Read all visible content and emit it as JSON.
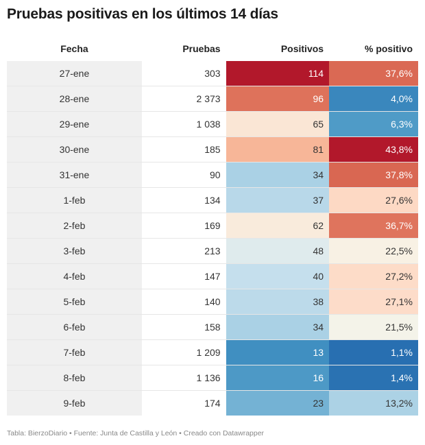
{
  "title": "Pruebas positivas en los últimos 14 días",
  "footer": "Tabla: BierzoDiario • Fuente: Junta de Castilla y León • Creado con Datawrapper",
  "chart_data": {
    "type": "table",
    "columns": [
      "Fecha",
      "Pruebas",
      "Positivos",
      "% positivo"
    ],
    "rows": [
      {
        "fecha": "27-ene",
        "pruebas": "303",
        "positivos": "114",
        "pct": "37,6%",
        "pos_value": 114,
        "pct_value": 37.6
      },
      {
        "fecha": "28-ene",
        "pruebas": "2 373",
        "positivos": "96",
        "pct": "4,0%",
        "pos_value": 96,
        "pct_value": 4.0
      },
      {
        "fecha": "29-ene",
        "pruebas": "1 038",
        "positivos": "65",
        "pct": "6,3%",
        "pos_value": 65,
        "pct_value": 6.3
      },
      {
        "fecha": "30-ene",
        "pruebas": "185",
        "positivos": "81",
        "pct": "43,8%",
        "pos_value": 81,
        "pct_value": 43.8
      },
      {
        "fecha": "31-ene",
        "pruebas": "90",
        "positivos": "34",
        "pct": "37,8%",
        "pos_value": 34,
        "pct_value": 37.8
      },
      {
        "fecha": "1-feb",
        "pruebas": "134",
        "positivos": "37",
        "pct": "27,6%",
        "pos_value": 37,
        "pct_value": 27.6
      },
      {
        "fecha": "2-feb",
        "pruebas": "169",
        "positivos": "62",
        "pct": "36,7%",
        "pos_value": 62,
        "pct_value": 36.7
      },
      {
        "fecha": "3-feb",
        "pruebas": "213",
        "positivos": "48",
        "pct": "22,5%",
        "pos_value": 48,
        "pct_value": 22.5
      },
      {
        "fecha": "4-feb",
        "pruebas": "147",
        "positivos": "40",
        "pct": "27,2%",
        "pos_value": 40,
        "pct_value": 27.2
      },
      {
        "fecha": "5-feb",
        "pruebas": "140",
        "positivos": "38",
        "pct": "27,1%",
        "pos_value": 38,
        "pct_value": 27.1
      },
      {
        "fecha": "6-feb",
        "pruebas": "158",
        "positivos": "34",
        "pct": "21,5%",
        "pos_value": 34,
        "pct_value": 21.5
      },
      {
        "fecha": "7-feb",
        "pruebas": "1 209",
        "positivos": "13",
        "pct": "1,1%",
        "pos_value": 13,
        "pct_value": 1.1
      },
      {
        "fecha": "8-feb",
        "pruebas": "1 136",
        "positivos": "16",
        "pct": "1,4%",
        "pos_value": 16,
        "pct_value": 1.4
      },
      {
        "fecha": "9-feb",
        "pruebas": "174",
        "positivos": "23",
        "pct": "13,2%",
        "pos_value": 23,
        "pct_value": 13.2
      }
    ],
    "color_scale": {
      "colors": [
        "#2166ac",
        "#4393c3",
        "#92c5de",
        "#d1e5f0",
        "#f7f4e8",
        "#fddbc7",
        "#f4a582",
        "#d6604d",
        "#b2182b"
      ],
      "positivos_domain": [
        0,
        114
      ],
      "pct_domain": [
        0,
        43.8
      ]
    }
  }
}
